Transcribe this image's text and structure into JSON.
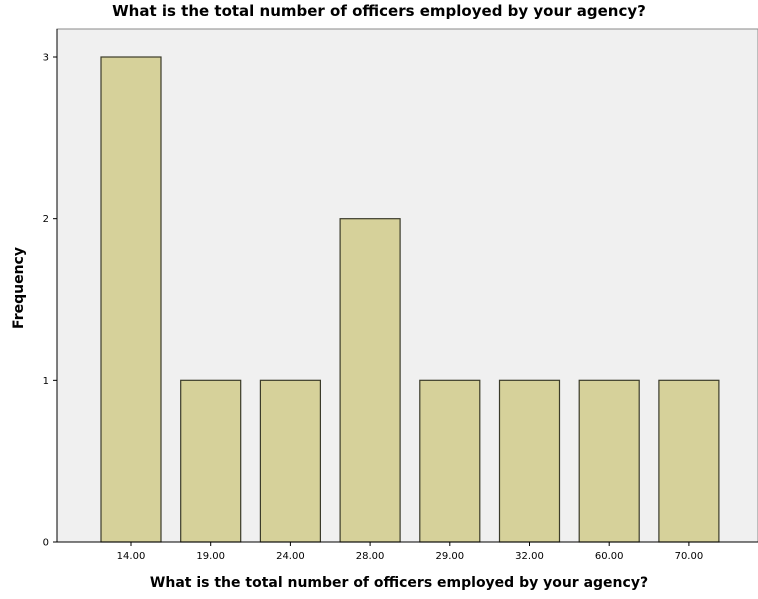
{
  "chart_data": {
    "type": "bar",
    "title": "What is the total number of officers employed by your agency?",
    "xlabel": "What is the total number of officers employed by your agency?",
    "ylabel": "Frequency",
    "categories": [
      "14.00",
      "19.00",
      "24.00",
      "28.00",
      "29.00",
      "32.00",
      "60.00",
      "70.00"
    ],
    "values": [
      3,
      1,
      1,
      2,
      1,
      1,
      1,
      1
    ],
    "ylim": [
      0,
      3
    ],
    "yticks": [
      "0",
      "1",
      "2",
      "3"
    ],
    "grid": false,
    "legend": "none",
    "colors": {
      "bar_fill": "#d6d19a",
      "bar_stroke": "#3b3b2a",
      "plot_background": "#f0f0f0",
      "axis": "#000000"
    }
  }
}
